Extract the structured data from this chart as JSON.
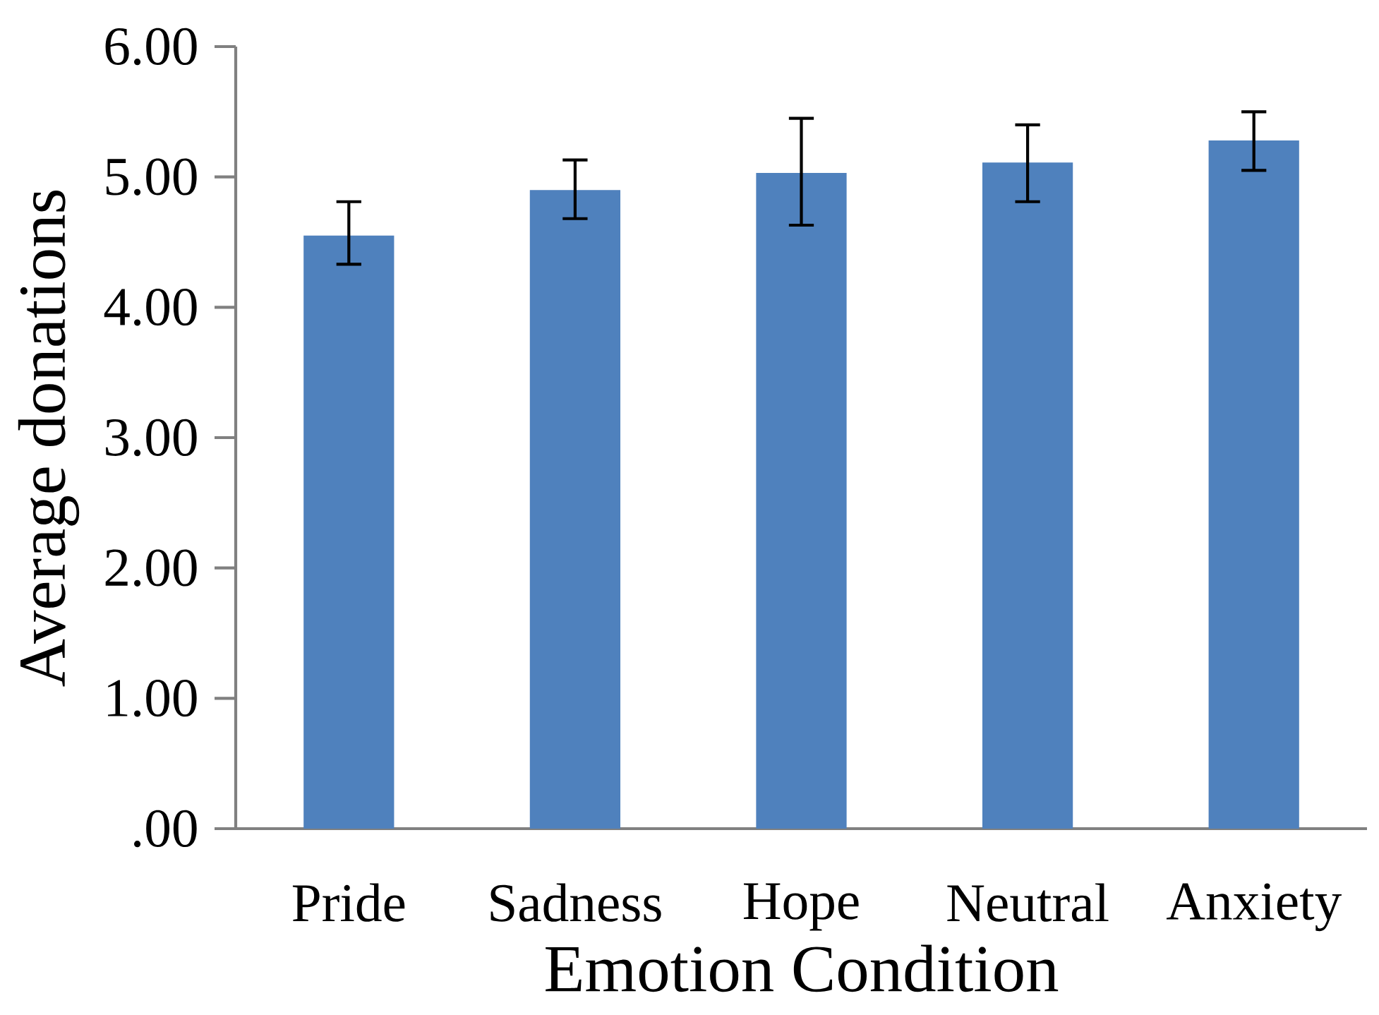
{
  "chart_data": {
    "type": "bar",
    "xlabel": "Emotion Condition",
    "ylabel": "Average donations",
    "categories": [
      "Pride",
      "Sadness",
      "Hope",
      "Neutral",
      "Anxiety"
    ],
    "values": [
      4.55,
      4.9,
      5.03,
      5.11,
      5.28
    ],
    "errors": [
      [
        4.33,
        4.81
      ],
      [
        4.68,
        5.13
      ],
      [
        4.63,
        5.45
      ],
      [
        4.81,
        5.4
      ],
      [
        5.05,
        5.5
      ]
    ],
    "color": "#4f81bd",
    "ylim": [
      0,
      6
    ],
    "yticks": [
      {
        "value": 0,
        "label": ".00"
      },
      {
        "value": 1,
        "label": "1.00"
      },
      {
        "value": 2,
        "label": "2.00"
      },
      {
        "value": 3,
        "label": "3.00"
      },
      {
        "value": 4,
        "label": "4.00"
      },
      {
        "value": 5,
        "label": "5.00"
      },
      {
        "value": 6,
        "label": "6.00"
      }
    ],
    "grid": false
  }
}
